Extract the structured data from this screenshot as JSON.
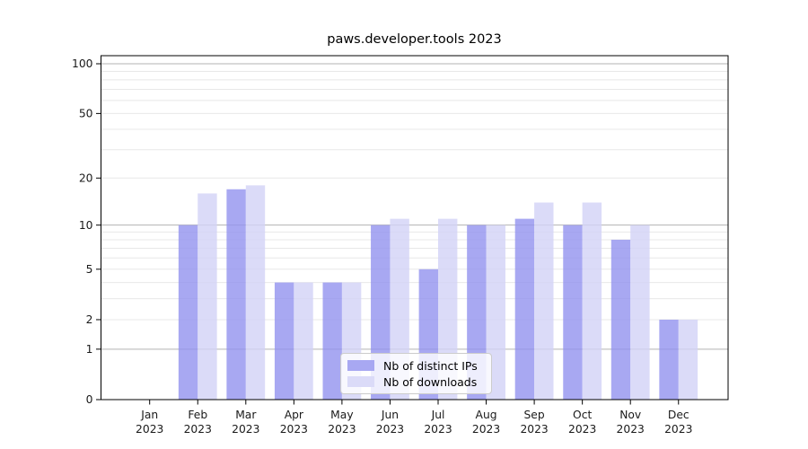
{
  "title": "paws.developer.tools 2023",
  "colors": {
    "distinct_ips_bar": "rgba(146,146,239,0.8)",
    "downloads_bar": "rgba(210,210,246,0.8)",
    "distinct_ips_solid": "#a8a8f2",
    "downloads_solid": "#dbdbf8",
    "grid_major": "#b3b3b3",
    "grid_minor": "#e8e8e8",
    "spine": "#000000",
    "tick_text": "#1a1a1a"
  },
  "legend": {
    "items": [
      {
        "label": "Nb of distinct IPs",
        "color_key": "distinct_ips_solid"
      },
      {
        "label": "Nb of downloads",
        "color_key": "downloads_solid"
      }
    ]
  },
  "chart_data": {
    "type": "bar",
    "title": "paws.developer.tools 2023",
    "categories": [
      "Jan 2023",
      "Feb 2023",
      "Mar 2023",
      "Apr 2023",
      "May 2023",
      "Jun 2023",
      "Jul 2023",
      "Aug 2023",
      "Sep 2023",
      "Oct 2023",
      "Nov 2023",
      "Dec 2023"
    ],
    "series": [
      {
        "name": "Nb of distinct IPs",
        "values": [
          0,
          10,
          17,
          4,
          4,
          10,
          5,
          10,
          11,
          10,
          8,
          2
        ]
      },
      {
        "name": "Nb of downloads",
        "values": [
          0,
          16,
          18,
          4,
          4,
          11,
          11,
          10,
          14,
          14,
          10,
          2
        ]
      }
    ],
    "y_scale": "symlog ln(1+y)",
    "ylim": [
      0,
      110
    ],
    "y_ticks": [
      0,
      1,
      2,
      5,
      10,
      20,
      50,
      100
    ],
    "y_minor_ticks": [
      2,
      3,
      4,
      5,
      6,
      7,
      8,
      9,
      20,
      30,
      40,
      50,
      60,
      70,
      80,
      90
    ],
    "grid": true,
    "legend_position": "lower center",
    "xlabel": "",
    "ylabel": ""
  }
}
